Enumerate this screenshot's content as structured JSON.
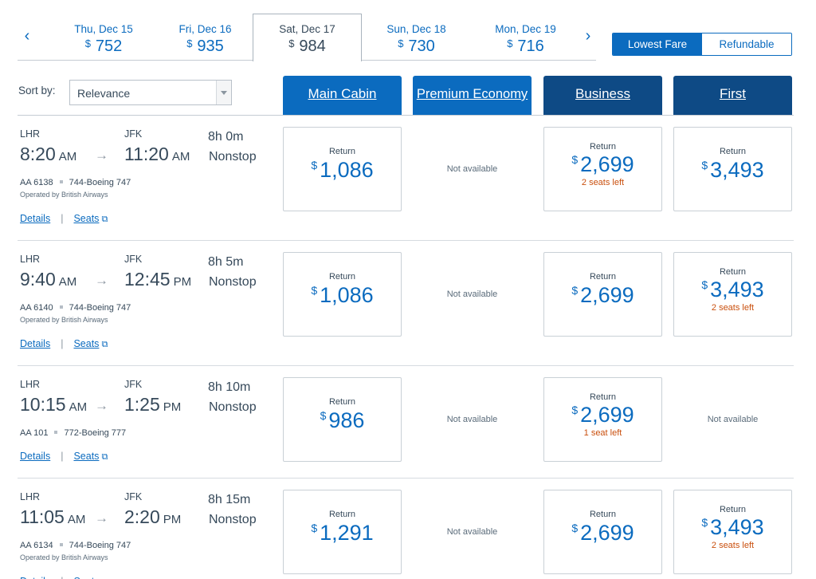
{
  "date_tabs": [
    {
      "label": "Thu, Dec 15",
      "currency": "$",
      "price": "752",
      "active": false
    },
    {
      "label": "Fri, Dec 16",
      "currency": "$",
      "price": "935",
      "active": false
    },
    {
      "label": "Sat, Dec 17",
      "currency": "$",
      "price": "984",
      "active": true
    },
    {
      "label": "Sun, Dec 18",
      "currency": "$",
      "price": "730",
      "active": false
    },
    {
      "label": "Mon, Dec 19",
      "currency": "$",
      "price": "716",
      "active": false
    }
  ],
  "nav": {
    "prev_icon": "‹",
    "next_icon": "›"
  },
  "fare_toggle": {
    "lowest": "Lowest Fare",
    "refundable": "Refundable",
    "selected": "lowest"
  },
  "sort": {
    "label": "Sort by:",
    "value": "Relevance"
  },
  "cabins": {
    "main": "Main Cabin",
    "premium": "Premium Economy",
    "business": "Business",
    "first": "First"
  },
  "links": {
    "details": "Details",
    "seats": "Seats",
    "separator": "|"
  },
  "colors": {
    "accent": "#0b6bbf",
    "dark_header": "#0e4a85",
    "seats_warning": "#c94f0d"
  },
  "flights": [
    {
      "from": "LHR",
      "to": "JFK",
      "dep_time": "8:20",
      "dep_ampm": "AM",
      "arr_time": "11:20",
      "arr_ampm": "AM",
      "duration": "8h  0m",
      "stops": "Nonstop",
      "flight_no": "AA 6138",
      "aircraft": "744-Boeing 747",
      "operator": "Operated by British Airways",
      "main": {
        "available": true,
        "label": "Return",
        "currency": "$",
        "price": "1,086",
        "seats": ""
      },
      "premium": {
        "available": false,
        "label": "Not available"
      },
      "business": {
        "available": true,
        "label": "Return",
        "currency": "$",
        "price": "2,699",
        "seats": "2 seats left"
      },
      "first": {
        "available": true,
        "label": "Return",
        "currency": "$",
        "price": "3,493",
        "seats": ""
      }
    },
    {
      "from": "LHR",
      "to": "JFK",
      "dep_time": "9:40",
      "dep_ampm": "AM",
      "arr_time": "12:45",
      "arr_ampm": "PM",
      "duration": "8h  5m",
      "stops": "Nonstop",
      "flight_no": "AA 6140",
      "aircraft": "744-Boeing 747",
      "operator": "Operated by British Airways",
      "main": {
        "available": true,
        "label": "Return",
        "currency": "$",
        "price": "1,086",
        "seats": ""
      },
      "premium": {
        "available": false,
        "label": "Not available"
      },
      "business": {
        "available": true,
        "label": "Return",
        "currency": "$",
        "price": "2,699",
        "seats": ""
      },
      "first": {
        "available": true,
        "label": "Return",
        "currency": "$",
        "price": "3,493",
        "seats": "2 seats left"
      }
    },
    {
      "from": "LHR",
      "to": "JFK",
      "dep_time": "10:15",
      "dep_ampm": "AM",
      "arr_time": "1:25",
      "arr_ampm": "PM",
      "duration": "8h  10m",
      "stops": "Nonstop",
      "flight_no": "AA 101",
      "aircraft": "772-Boeing 777",
      "operator": "",
      "main": {
        "available": true,
        "label": "Return",
        "currency": "$",
        "price": "986",
        "seats": ""
      },
      "premium": {
        "available": false,
        "label": "Not available"
      },
      "business": {
        "available": true,
        "label": "Return",
        "currency": "$",
        "price": "2,699",
        "seats": "1 seat left"
      },
      "first": {
        "available": false,
        "label": "Not available"
      }
    },
    {
      "from": "LHR",
      "to": "JFK",
      "dep_time": "11:05",
      "dep_ampm": "AM",
      "arr_time": "2:20",
      "arr_ampm": "PM",
      "duration": "8h  15m",
      "stops": "Nonstop",
      "flight_no": "AA 6134",
      "aircraft": "744-Boeing 747",
      "operator": "Operated by British Airways",
      "main": {
        "available": true,
        "label": "Return",
        "currency": "$",
        "price": "1,291",
        "seats": ""
      },
      "premium": {
        "available": false,
        "label": "Not available"
      },
      "business": {
        "available": true,
        "label": "Return",
        "currency": "$",
        "price": "2,699",
        "seats": ""
      },
      "first": {
        "available": true,
        "label": "Return",
        "currency": "$",
        "price": "3,493",
        "seats": "2 seats left"
      }
    }
  ]
}
